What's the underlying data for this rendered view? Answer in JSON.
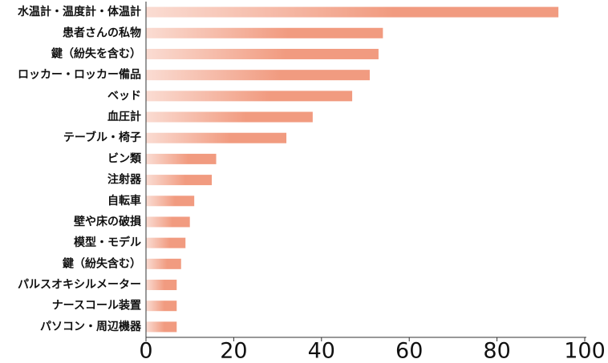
{
  "chart_data": {
    "type": "bar",
    "orientation": "horizontal",
    "categories": [
      "水温計・温度計・体温計",
      "患者さんの私物",
      "鍵（紛失を含む）",
      "ロッカー・ロッカー備品",
      "ベッド",
      "血圧計",
      "テーブル・椅子",
      "ビン類",
      "注射器",
      "自転車",
      "壁や床の破損",
      "模型・モデル",
      "鍵（紛失含む）",
      "パルスオキシルメーター",
      "ナースコール装置",
      "パソコン・周辺機器"
    ],
    "values": [
      94,
      54,
      53,
      51,
      47,
      38,
      32,
      16,
      15,
      11,
      10,
      9,
      8,
      7,
      7,
      7
    ],
    "color": "#f19b80",
    "xlim": [
      0,
      100
    ],
    "xticks": [
      0,
      20,
      40,
      60,
      80,
      100
    ],
    "grid": false
  }
}
